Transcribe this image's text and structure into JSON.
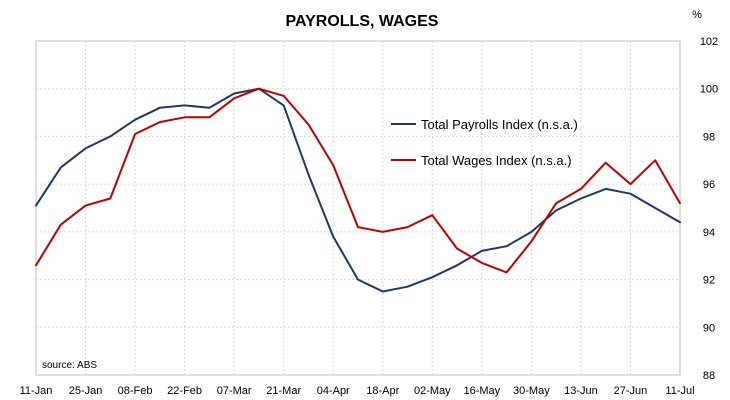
{
  "chart_data": {
    "type": "line",
    "title": "PAYROLLS, WAGES",
    "y_unit": "%",
    "source": "source: ABS",
    "x_tick_labels": [
      "11-Jan",
      "25-Jan",
      "08-Feb",
      "22-Feb",
      "07-Mar",
      "21-Mar",
      "04-Apr",
      "18-Apr",
      "02-May",
      "16-May",
      "30-May",
      "13-Jun",
      "27-Jun",
      "11-Jul"
    ],
    "x": [
      "11-Jan",
      "18-Jan",
      "25-Jan",
      "01-Feb",
      "08-Feb",
      "15-Feb",
      "22-Feb",
      "29-Feb",
      "07-Mar",
      "14-Mar",
      "21-Mar",
      "28-Mar",
      "04-Apr",
      "11-Apr",
      "18-Apr",
      "25-Apr",
      "02-May",
      "09-May",
      "16-May",
      "23-May",
      "30-May",
      "06-Jun",
      "13-Jun",
      "20-Jun",
      "27-Jun",
      "04-Jul",
      "11-Jul"
    ],
    "ylim": [
      88,
      102
    ],
    "y_ticks": [
      88,
      90,
      92,
      94,
      96,
      98,
      100,
      102
    ],
    "grid": true,
    "legend_position": "right",
    "series": [
      {
        "name": "Total Payrolls Index (n.s.a.)",
        "color": "#1f3864",
        "values": [
          95.1,
          96.7,
          97.5,
          98.0,
          98.7,
          99.2,
          99.3,
          99.2,
          99.8,
          100.0,
          99.3,
          96.4,
          93.8,
          92.0,
          91.5,
          91.7,
          92.1,
          92.6,
          93.2,
          93.4,
          94.0,
          94.9,
          95.4,
          95.8,
          95.6,
          95.0,
          94.4
        ]
      },
      {
        "name": "Total Wages Index (n.s.a.)",
        "color": "#c00000",
        "values": [
          92.6,
          94.3,
          95.1,
          95.4,
          98.1,
          98.6,
          98.8,
          98.8,
          99.6,
          100.0,
          99.7,
          98.5,
          96.8,
          94.2,
          94.0,
          94.2,
          94.7,
          93.3,
          92.7,
          92.3,
          93.6,
          95.2,
          95.8,
          96.9,
          96.0,
          97.0,
          95.2
        ]
      }
    ]
  }
}
